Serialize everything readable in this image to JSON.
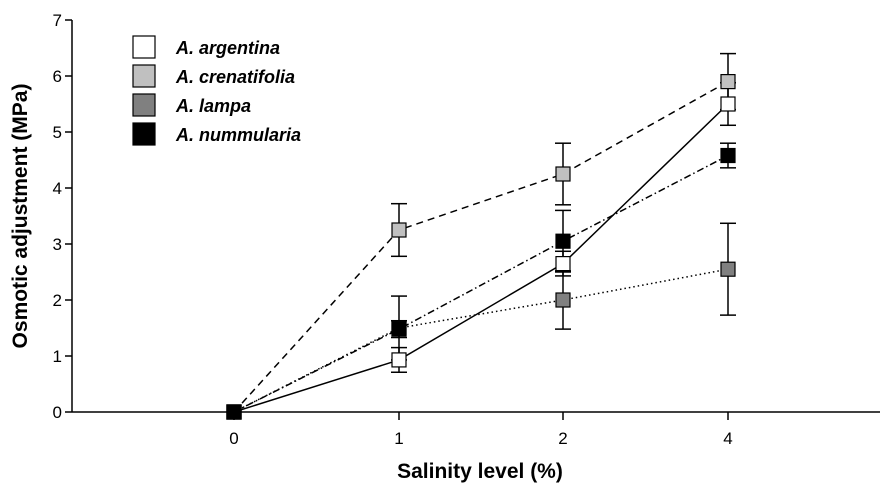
{
  "chart_data": {
    "type": "line",
    "title": "",
    "xlabel": "Salinity level (%)",
    "ylabel": "Osmotic adjustment (MPa)",
    "categories": [
      "0",
      "1",
      "2",
      "4"
    ],
    "ylim": [
      0,
      7
    ],
    "yticks": [
      0,
      1,
      2,
      3,
      4,
      5,
      6,
      7
    ],
    "grid": false,
    "legend_position": "top-left",
    "series": [
      {
        "name": "A. argentina",
        "values": [
          0,
          0.93,
          2.65,
          5.5
        ],
        "errors": [
          0,
          0.22,
          0.22,
          0.38
        ],
        "marker_fill": "#ffffff",
        "line_style": "solid"
      },
      {
        "name": "A. crenatifolia",
        "values": [
          0,
          3.25,
          4.25,
          5.9
        ],
        "errors": [
          0,
          0.47,
          0.55,
          0.5
        ],
        "marker_fill": "#c0c0c0",
        "line_style": "dashed"
      },
      {
        "name": "A. lampa",
        "values": [
          0,
          1.5,
          2.0,
          2.55
        ],
        "errors": [
          0,
          0.57,
          0.52,
          0.82
        ],
        "marker_fill": "#808080",
        "line_style": "dotted"
      },
      {
        "name": "A. nummularia",
        "values": [
          0,
          1.48,
          3.05,
          4.58
        ],
        "errors": [
          0,
          0.15,
          0.55,
          0.22
        ],
        "marker_fill": "#000000",
        "line_style": "dashdot"
      }
    ]
  }
}
